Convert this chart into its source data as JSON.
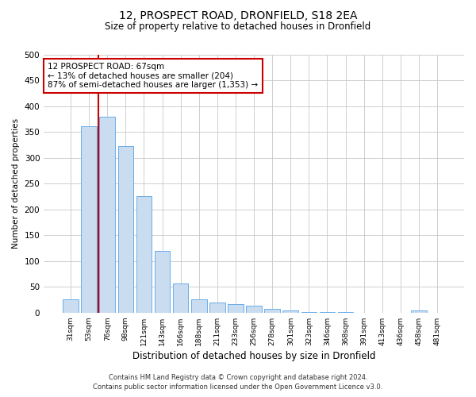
{
  "title": "12, PROSPECT ROAD, DRONFIELD, S18 2EA",
  "subtitle": "Size of property relative to detached houses in Dronfield",
  "xlabel": "Distribution of detached houses by size in Dronfield",
  "ylabel": "Number of detached properties",
  "footer_line1": "Contains HM Land Registry data © Crown copyright and database right 2024.",
  "footer_line2": "Contains public sector information licensed under the Open Government Licence v3.0.",
  "bar_labels": [
    "31sqm",
    "53sqm",
    "76sqm",
    "98sqm",
    "121sqm",
    "143sqm",
    "166sqm",
    "188sqm",
    "211sqm",
    "233sqm",
    "256sqm",
    "278sqm",
    "301sqm",
    "323sqm",
    "346sqm",
    "368sqm",
    "391sqm",
    "413sqm",
    "436sqm",
    "458sqm",
    "481sqm"
  ],
  "bar_values": [
    26,
    362,
    380,
    323,
    226,
    120,
    57,
    26,
    20,
    16,
    13,
    7,
    4,
    2,
    1,
    1,
    0,
    0,
    0,
    4,
    0
  ],
  "bar_color": "#c9dcf0",
  "bar_edge_color": "#6aaee8",
  "grid_color": "#c8c8c8",
  "vline_color": "#cc0000",
  "vline_x_index": 1.5,
  "annotation_line1": "12 PROSPECT ROAD: 67sqm",
  "annotation_line2": "← 13% of detached houses are smaller (204)",
  "annotation_line3": "87% of semi-detached houses are larger (1,353) →",
  "annotation_box_color": "#ffffff",
  "annotation_box_edge": "#cc0000",
  "ylim": [
    0,
    500
  ],
  "yticks": [
    0,
    50,
    100,
    150,
    200,
    250,
    300,
    350,
    400,
    450,
    500
  ],
  "background_color": "#ffffff"
}
